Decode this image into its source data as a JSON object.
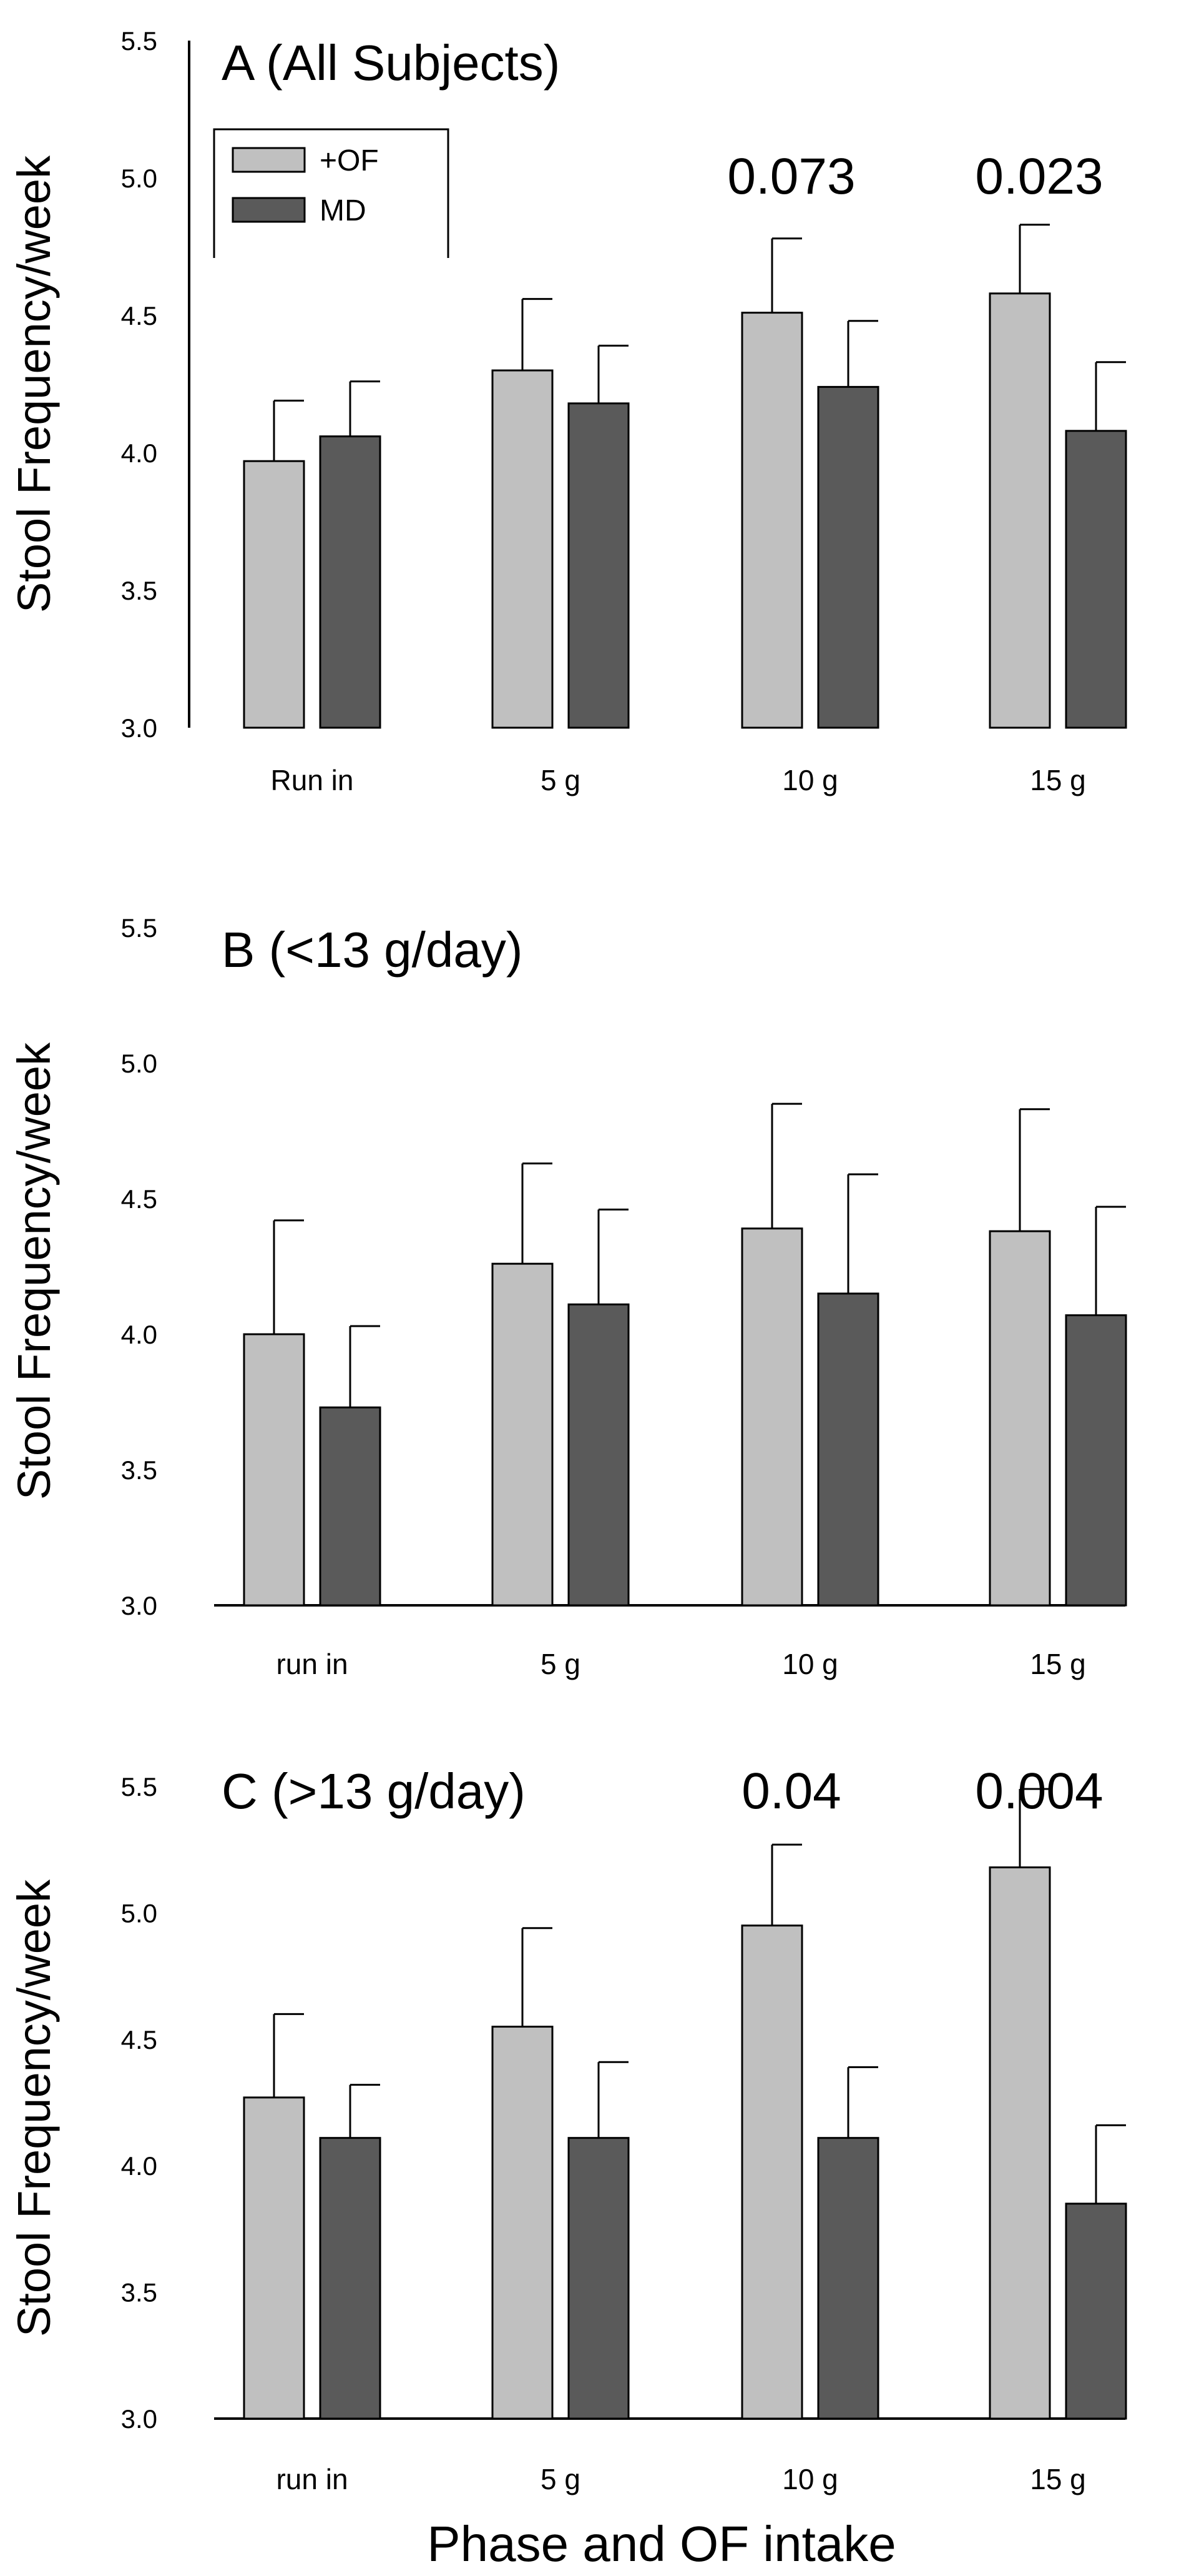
{
  "chart_data": [
    {
      "type": "bar",
      "title": "A (All Subjects)",
      "ylabel": "Stool Frequency/week",
      "xlabel": "",
      "ylim": [
        3.0,
        5.5
      ],
      "yticks": [
        "3.0",
        "3.5",
        "4.0",
        "4.5",
        "5.0",
        "5.5"
      ],
      "categories": [
        "Run in",
        "5 g",
        "10 g",
        "15 g"
      ],
      "series": [
        {
          "name": "+OF",
          "values": [
            3.97,
            4.3,
            4.51,
            4.58
          ],
          "errors": [
            0.22,
            0.26,
            0.27,
            0.25
          ]
        },
        {
          "name": "MD",
          "values": [
            4.06,
            4.18,
            4.24,
            4.08
          ],
          "errors": [
            0.2,
            0.21,
            0.24,
            0.25
          ]
        }
      ],
      "annotations": [
        {
          "text": "0.073",
          "category": "10 g"
        },
        {
          "text": "0.023",
          "category": "15 g"
        }
      ],
      "legend": {
        "position": "top-left",
        "entries": [
          "+OF",
          "MD"
        ]
      }
    },
    {
      "type": "bar",
      "title": "B (<13 g/day)",
      "ylabel": "Stool Frequency/week",
      "xlabel": "",
      "ylim": [
        3.0,
        5.5
      ],
      "yticks": [
        "3.0",
        "3.5",
        "4.0",
        "4.5",
        "5.0",
        "5.5"
      ],
      "categories": [
        "run in",
        "5 g",
        "10 g",
        "15 g"
      ],
      "series": [
        {
          "name": "+OF",
          "values": [
            4.0,
            4.26,
            4.39,
            4.38
          ],
          "errors": [
            0.42,
            0.37,
            0.46,
            0.45
          ]
        },
        {
          "name": "MD",
          "values": [
            3.73,
            4.11,
            4.15,
            4.07
          ],
          "errors": [
            0.3,
            0.35,
            0.44,
            0.4
          ]
        }
      ],
      "annotations": []
    },
    {
      "type": "bar",
      "title": "C (>13 g/day)",
      "ylabel": "Stool Frequency/week",
      "xlabel": "Phase and OF intake",
      "ylim": [
        3.0,
        5.5
      ],
      "yticks": [
        "3.0",
        "3.5",
        "4.0",
        "4.5",
        "5.0",
        "5.5"
      ],
      "categories": [
        "run in",
        "5 g",
        "10 g",
        "15 g"
      ],
      "series": [
        {
          "name": "+OF",
          "values": [
            4.27,
            4.55,
            4.95,
            5.18
          ],
          "errors": [
            0.33,
            0.39,
            0.32,
            0.31
          ]
        },
        {
          "name": "MD",
          "values": [
            4.11,
            4.11,
            4.11,
            3.85
          ],
          "errors": [
            0.21,
            0.3,
            0.28,
            0.31
          ]
        }
      ],
      "annotations": [
        {
          "text": "0.04",
          "category": "10 g"
        },
        {
          "text": "0.004",
          "category": "15 g"
        }
      ]
    }
  ],
  "colors": {
    "of": "#c0c0c0",
    "md": "#5a5a5a",
    "stroke": "#000000"
  }
}
